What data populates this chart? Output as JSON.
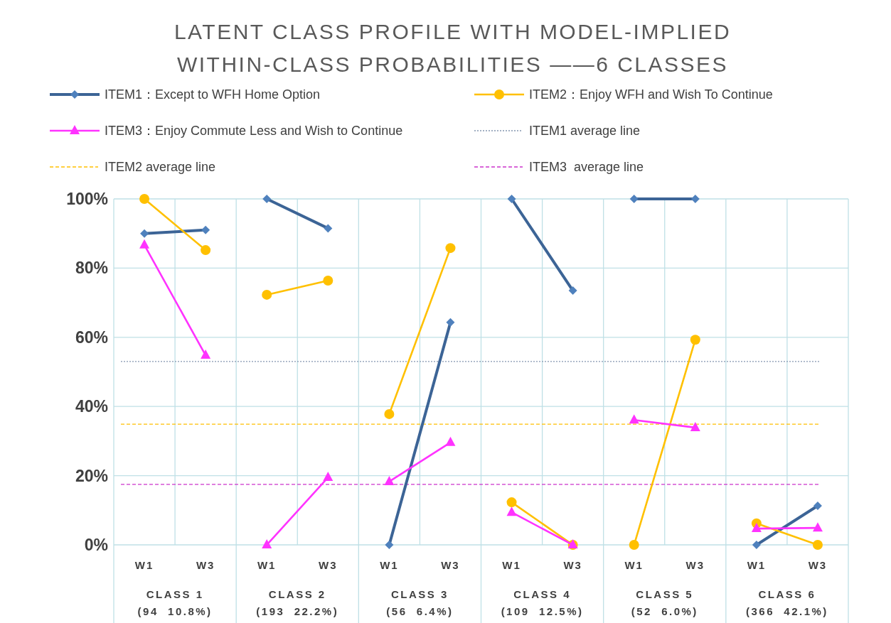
{
  "chart_data": {
    "type": "line",
    "title": "LATENT CLASS PROFILE WITH MODEL-IMPLIED\nWITHIN-CLASS PROBABILITIES ——6 CLASSES",
    "categories": [
      "W1",
      "W3",
      "W1",
      "W3",
      "W1",
      "W3",
      "W1",
      "W3",
      "W1",
      "W3",
      "W1",
      "W3"
    ],
    "series": [
      {
        "name": "ITEM1：Except to WFH Home Option",
        "color": "#3c6496",
        "marker": "diamond",
        "values": [
          90,
          91,
          100,
          91.5,
          0,
          64.3,
          100,
          73.5,
          100,
          100,
          0,
          11.3
        ]
      },
      {
        "name": "ITEM2：Enjoy WFH and Wish To Continue",
        "color": "#ffc000",
        "marker": "circle",
        "values": [
          100,
          85.2,
          72.3,
          76.4,
          37.8,
          85.8,
          12.3,
          0,
          0,
          59.3,
          6.2,
          0
        ]
      },
      {
        "name": "ITEM3：Enjoy Commute Less and Wish to Continue",
        "color": "#ff33ff",
        "marker": "triangle",
        "values": [
          86.7,
          54.8,
          0,
          19.5,
          18.3,
          29.6,
          9.4,
          0,
          36.1,
          33.9,
          4.7,
          4.9
        ]
      }
    ],
    "ref_lines": [
      {
        "axis": "y",
        "value": 53,
        "label": "ITEM1 average line",
        "color": "#8496b0",
        "line_style": "dotted"
      },
      {
        "axis": "y",
        "value": 34.9,
        "label": "ITEM2 average line",
        "color": "#ffc000",
        "line_style": "dashed"
      },
      {
        "axis": "y",
        "value": 17.5,
        "label": "ITEM3  average line",
        "color": "#cc33cc",
        "line_style": "dashed"
      }
    ],
    "annotations": [
      "CLASS 1\n(94  10.8%)",
      "CLASS 2\n(193  22.2%)",
      "CLASS 3\n(56  6.4%)",
      "CLASS 4\n(109  12.5%)",
      "CLASS 5\n(52  6.0%)",
      "CLASS 6\n(366  42.1%)"
    ],
    "ylim": [
      0,
      100
    ],
    "yticks": [
      {
        "value": 0,
        "label": "0%"
      },
      {
        "value": 20,
        "label": "20%"
      },
      {
        "value": 40,
        "label": "40%"
      },
      {
        "value": 60,
        "label": "60%"
      },
      {
        "value": 80,
        "label": "80%"
      },
      {
        "value": 100,
        "label": "100%"
      }
    ],
    "grid": true,
    "legend": "top"
  }
}
